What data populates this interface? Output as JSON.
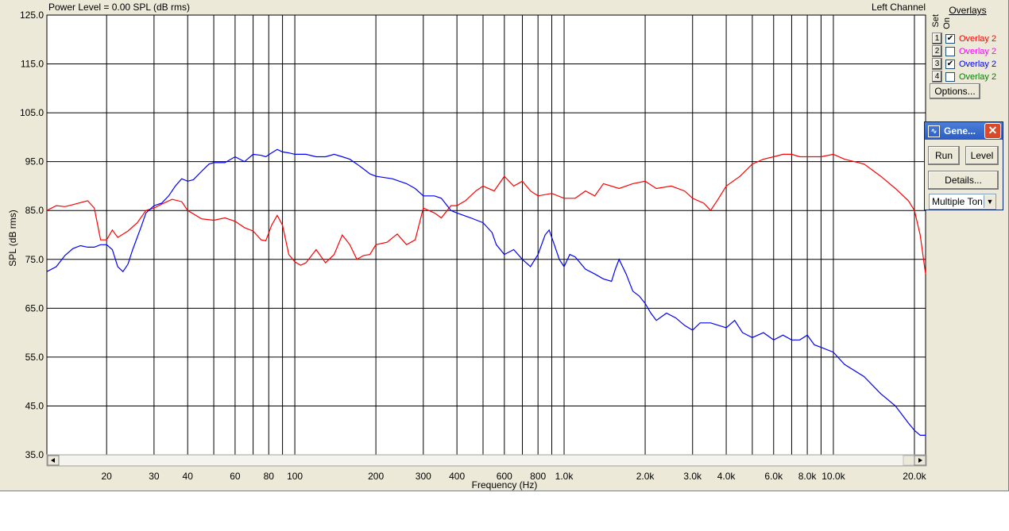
{
  "header": {
    "title": "Power Level = 0.00 SPL (dB rms)",
    "channel": "Left Channel"
  },
  "overlays": {
    "heading": "Overlays",
    "set_label": "Set",
    "on_label": "On",
    "items": [
      {
        "num": "1",
        "checked": true,
        "label": "Overlay 2",
        "color": "#ff0000"
      },
      {
        "num": "2",
        "checked": false,
        "label": "Overlay 2",
        "color": "#ff00ff"
      },
      {
        "num": "3",
        "checked": true,
        "label": "Overlay 2",
        "color": "#0000ff"
      },
      {
        "num": "4",
        "checked": false,
        "label": "Overlay 2",
        "color": "#008000"
      }
    ],
    "options_button": "Options..."
  },
  "generator": {
    "title": "Gene...",
    "run_button": "Run",
    "level_button": "Level",
    "details_button": "Details...",
    "mode_select": "Multiple Ton"
  },
  "chart_data": {
    "type": "line",
    "xlabel": "Frequency (Hz)",
    "ylabel": "SPL (dB rms)",
    "xscale": "log",
    "xlim": [
      12,
      22000
    ],
    "ylim": [
      35,
      125
    ],
    "grid": true,
    "yticks": [
      "125.0",
      "115.0",
      "105.0",
      "95.0",
      "85.0",
      "75.0",
      "65.0",
      "55.0",
      "45.0",
      "35.0"
    ],
    "xticks": [
      {
        "v": 20,
        "label": "20"
      },
      {
        "v": 30,
        "label": "30"
      },
      {
        "v": 40,
        "label": "40"
      },
      {
        "v": 60,
        "label": "60"
      },
      {
        "v": 80,
        "label": "80"
      },
      {
        "v": 100,
        "label": "100"
      },
      {
        "v": 200,
        "label": "200"
      },
      {
        "v": 300,
        "label": "300"
      },
      {
        "v": 400,
        "label": "400"
      },
      {
        "v": 600,
        "label": "600"
      },
      {
        "v": 800,
        "label": "800"
      },
      {
        "v": 1000,
        "label": "1.0k"
      },
      {
        "v": 2000,
        "label": "2.0k"
      },
      {
        "v": 3000,
        "label": "3.0k"
      },
      {
        "v": 4000,
        "label": "4.0k"
      },
      {
        "v": 6000,
        "label": "6.0k"
      },
      {
        "v": 8000,
        "label": "8.0k"
      },
      {
        "v": 10000,
        "label": "10.0k"
      },
      {
        "v": 20000,
        "label": "20.0k"
      }
    ],
    "gridlines_x": [
      20,
      30,
      40,
      50,
      60,
      70,
      80,
      90,
      100,
      200,
      300,
      400,
      500,
      600,
      700,
      800,
      900,
      1000,
      2000,
      3000,
      4000,
      5000,
      6000,
      7000,
      8000,
      9000,
      10000,
      20000
    ],
    "series": [
      {
        "color": "#ff0000",
        "points": [
          [
            12,
            85
          ],
          [
            13,
            86
          ],
          [
            14,
            85.8
          ],
          [
            15,
            86.2
          ],
          [
            17,
            87
          ],
          [
            18,
            85.5
          ],
          [
            19,
            79
          ],
          [
            20,
            79
          ],
          [
            21,
            81
          ],
          [
            22,
            79.5
          ],
          [
            24,
            80.8
          ],
          [
            26,
            82.5
          ],
          [
            28,
            85
          ],
          [
            30,
            85.5
          ],
          [
            32,
            86.3
          ],
          [
            35,
            87.3
          ],
          [
            38,
            86.8
          ],
          [
            40,
            85
          ],
          [
            45,
            83.3
          ],
          [
            50,
            83
          ],
          [
            55,
            83.5
          ],
          [
            60,
            82.8
          ],
          [
            65,
            81.5
          ],
          [
            70,
            80.8
          ],
          [
            75,
            79
          ],
          [
            78,
            78.8
          ],
          [
            82,
            82
          ],
          [
            86,
            84
          ],
          [
            90,
            82
          ],
          [
            95,
            76
          ],
          [
            100,
            74.5
          ],
          [
            105,
            73.8
          ],
          [
            110,
            74.3
          ],
          [
            120,
            77
          ],
          [
            130,
            74.3
          ],
          [
            140,
            76
          ],
          [
            150,
            80
          ],
          [
            160,
            78
          ],
          [
            170,
            75
          ],
          [
            180,
            75.8
          ],
          [
            190,
            76
          ],
          [
            200,
            78
          ],
          [
            220,
            78.5
          ],
          [
            240,
            80.2
          ],
          [
            260,
            78
          ],
          [
            280,
            79
          ],
          [
            300,
            85.5
          ],
          [
            330,
            84.5
          ],
          [
            350,
            83.5
          ],
          [
            380,
            86
          ],
          [
            400,
            86
          ],
          [
            430,
            87
          ],
          [
            470,
            89
          ],
          [
            500,
            90
          ],
          [
            550,
            89
          ],
          [
            600,
            92
          ],
          [
            650,
            90
          ],
          [
            700,
            91
          ],
          [
            750,
            89
          ],
          [
            800,
            88
          ],
          [
            900,
            88.5
          ],
          [
            1000,
            87.5
          ],
          [
            1100,
            87.5
          ],
          [
            1200,
            89
          ],
          [
            1300,
            88
          ],
          [
            1400,
            90.5
          ],
          [
            1600,
            89.5
          ],
          [
            1800,
            90.5
          ],
          [
            2000,
            91
          ],
          [
            2200,
            89.5
          ],
          [
            2500,
            90
          ],
          [
            2800,
            89
          ],
          [
            3000,
            87.5
          ],
          [
            3300,
            86.5
          ],
          [
            3500,
            85
          ],
          [
            3700,
            87
          ],
          [
            4000,
            90
          ],
          [
            4500,
            92
          ],
          [
            5000,
            94.5
          ],
          [
            5500,
            95.5
          ],
          [
            6000,
            96
          ],
          [
            6500,
            96.5
          ],
          [
            7000,
            96.5
          ],
          [
            7500,
            96
          ],
          [
            8000,
            96
          ],
          [
            9000,
            96
          ],
          [
            10000,
            96.5
          ],
          [
            11000,
            95.5
          ],
          [
            13000,
            94.5
          ],
          [
            15000,
            92
          ],
          [
            17000,
            89.5
          ],
          [
            19000,
            87
          ],
          [
            20000,
            85
          ],
          [
            21000,
            80
          ],
          [
            22000,
            72
          ]
        ]
      },
      {
        "color": "#0000ff",
        "points": [
          [
            12,
            72.5
          ],
          [
            13,
            73.5
          ],
          [
            14,
            75.8
          ],
          [
            15,
            77.2
          ],
          [
            16,
            77.8
          ],
          [
            17,
            77.5
          ],
          [
            18,
            77.5
          ],
          [
            19,
            78
          ],
          [
            20,
            78
          ],
          [
            21,
            77
          ],
          [
            22,
            73.5
          ],
          [
            23,
            72.5
          ],
          [
            24,
            74
          ],
          [
            25,
            77
          ],
          [
            27,
            82
          ],
          [
            28,
            84.5
          ],
          [
            30,
            86
          ],
          [
            32,
            86.5
          ],
          [
            34,
            88
          ],
          [
            36,
            90
          ],
          [
            38,
            91.5
          ],
          [
            40,
            91
          ],
          [
            42,
            91.3
          ],
          [
            45,
            93
          ],
          [
            48,
            94.5
          ],
          [
            50,
            94.8
          ],
          [
            55,
            94.8
          ],
          [
            60,
            96
          ],
          [
            65,
            95
          ],
          [
            70,
            96.5
          ],
          [
            75,
            96.3
          ],
          [
            78,
            96
          ],
          [
            82,
            96.8
          ],
          [
            86,
            97.5
          ],
          [
            90,
            97
          ],
          [
            95,
            96.8
          ],
          [
            100,
            96.5
          ],
          [
            110,
            96.5
          ],
          [
            120,
            96
          ],
          [
            130,
            96
          ],
          [
            140,
            96.5
          ],
          [
            150,
            96
          ],
          [
            160,
            95.5
          ],
          [
            170,
            94.5
          ],
          [
            180,
            93.5
          ],
          [
            190,
            92.5
          ],
          [
            200,
            92
          ],
          [
            230,
            91.5
          ],
          [
            260,
            90.5
          ],
          [
            280,
            89.5
          ],
          [
            300,
            88
          ],
          [
            330,
            88
          ],
          [
            350,
            87.5
          ],
          [
            380,
            85
          ],
          [
            400,
            84.5
          ],
          [
            450,
            83.5
          ],
          [
            500,
            82.5
          ],
          [
            540,
            80.5
          ],
          [
            560,
            78
          ],
          [
            600,
            76
          ],
          [
            650,
            77
          ],
          [
            700,
            75
          ],
          [
            750,
            73.5
          ],
          [
            800,
            76
          ],
          [
            850,
            80
          ],
          [
            880,
            81
          ],
          [
            920,
            78
          ],
          [
            960,
            75
          ],
          [
            1000,
            73.5
          ],
          [
            1050,
            76
          ],
          [
            1100,
            75.5
          ],
          [
            1200,
            73
          ],
          [
            1300,
            72
          ],
          [
            1400,
            71
          ],
          [
            1500,
            70.5
          ],
          [
            1550,
            73
          ],
          [
            1600,
            75
          ],
          [
            1700,
            72
          ],
          [
            1800,
            68.5
          ],
          [
            1900,
            67.5
          ],
          [
            2000,
            66
          ],
          [
            2100,
            64
          ],
          [
            2200,
            62.5
          ],
          [
            2400,
            64
          ],
          [
            2600,
            63
          ],
          [
            2800,
            61.5
          ],
          [
            3000,
            60.5
          ],
          [
            3200,
            62
          ],
          [
            3500,
            62
          ],
          [
            4000,
            61
          ],
          [
            4300,
            62.5
          ],
          [
            4600,
            60
          ],
          [
            5000,
            59
          ],
          [
            5500,
            60
          ],
          [
            6000,
            58.5
          ],
          [
            6500,
            59.5
          ],
          [
            7000,
            58.5
          ],
          [
            7500,
            58.5
          ],
          [
            8000,
            59.5
          ],
          [
            8500,
            57.5
          ],
          [
            9000,
            57
          ],
          [
            10000,
            56
          ],
          [
            11000,
            53.5
          ],
          [
            13000,
            51
          ],
          [
            15000,
            47.5
          ],
          [
            17000,
            45
          ],
          [
            19000,
            41.5
          ],
          [
            20000,
            40
          ],
          [
            21000,
            39
          ],
          [
            22000,
            39
          ]
        ]
      }
    ]
  }
}
